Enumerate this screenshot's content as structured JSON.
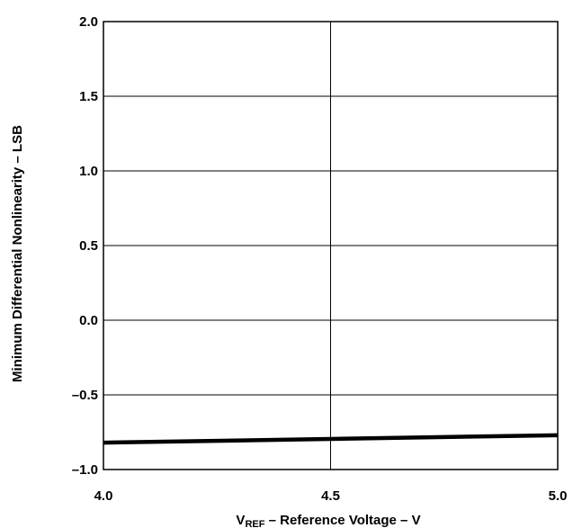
{
  "chart_data": {
    "type": "line",
    "title": "",
    "xlabel": {
      "prefix": "V",
      "subscript": "REF",
      "suffix": " – Reference Voltage – V"
    },
    "ylabel": "Minimum Differential Nonlinearity – LSB",
    "xlim": [
      4.0,
      5.0
    ],
    "ylim": [
      -1.0,
      2.0
    ],
    "x_ticks": [
      4.0,
      4.5,
      5.0
    ],
    "x_tick_labels": [
      "4.0",
      "4.5",
      "5.0"
    ],
    "y_ticks": [
      -1.0,
      -0.5,
      0.0,
      0.5,
      1.0,
      1.5,
      2.0
    ],
    "y_tick_labels": [
      "–1.0",
      "–0.5",
      "0.0",
      "0.5",
      "1.0",
      "1.5",
      "2.0"
    ],
    "grid": true,
    "series": [
      {
        "x": [
          4.0,
          4.5,
          5.0
        ],
        "y": [
          -0.82,
          -0.795,
          -0.77
        ],
        "color": "#000000"
      }
    ]
  }
}
